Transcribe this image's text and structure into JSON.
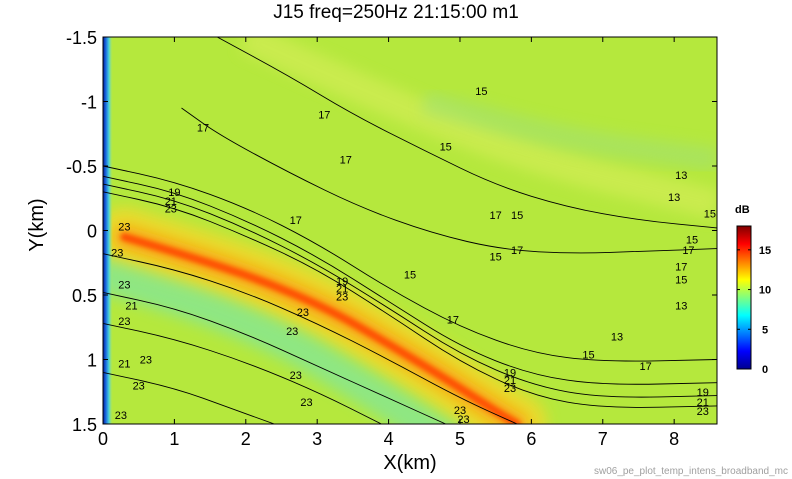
{
  "chart_data": {
    "type": "heatmap",
    "title": "J15 freq=250Hz 21:15:00 m1",
    "xlabel": "X(km)",
    "ylabel": "Y(km)",
    "xlim": [
      0,
      8.6
    ],
    "ylim": [
      -1.5,
      1.5
    ],
    "y_reversed": true,
    "x_ticks": [
      "0",
      "1",
      "2",
      "3",
      "4",
      "5",
      "6",
      "7",
      "8"
    ],
    "y_ticks": [
      "-1.5",
      "-1",
      "-0.5",
      "0",
      "0.5",
      "1",
      "1.5"
    ],
    "colorbar": {
      "label": "dB",
      "range": [
        0,
        18
      ],
      "ticks": [
        "0",
        "5",
        "10",
        "15"
      ],
      "colormap": "jet"
    },
    "background_level_db": 11,
    "high_intensity_band": {
      "level_db": 16.5,
      "path_x": [
        0.3,
        1.2,
        2.2,
        3.2,
        4.0,
        4.8,
        5.5,
        5.8
      ],
      "path_y": [
        0.05,
        0.2,
        0.38,
        0.62,
        0.88,
        1.15,
        1.4,
        1.5
      ]
    },
    "contour_lines": [
      {
        "level": "17",
        "x": [
          1.6,
          2.6,
          3.5,
          4.5,
          5.5,
          6.5,
          7.5,
          8.6
        ],
        "y": [
          -1.5,
          -1.2,
          -0.9,
          -0.62,
          -0.35,
          -0.18,
          -0.08,
          -0.02
        ]
      },
      {
        "level": "17",
        "x": [
          1.1,
          1.6,
          2.6,
          3.6,
          4.6,
          5.6,
          6.6,
          7.6,
          8.6
        ],
        "y": [
          -0.95,
          -0.75,
          -0.45,
          -0.18,
          0.02,
          0.15,
          0.18,
          0.16,
          0.14
        ]
      },
      {
        "level": "17",
        "x": [
          0.0,
          1.0,
          2.0,
          3.0,
          4.0,
          5.0,
          6.0,
          7.0,
          8.6
        ],
        "y": [
          -0.5,
          -0.38,
          -0.18,
          0.1,
          0.45,
          0.75,
          0.95,
          1.02,
          1.0
        ]
      },
      {
        "level": "19",
        "x": [
          0.0,
          1.0,
          2.0,
          3.0,
          4.0,
          5.0,
          6.0,
          7.0,
          8.6
        ],
        "y": [
          -0.42,
          -0.3,
          -0.08,
          0.2,
          0.55,
          0.9,
          1.12,
          1.2,
          1.18
        ]
      },
      {
        "level": "21",
        "x": [
          0.0,
          1.0,
          2.0,
          3.0,
          4.0,
          5.0,
          6.0,
          7.0,
          8.6
        ],
        "y": [
          -0.36,
          -0.24,
          -0.02,
          0.26,
          0.6,
          0.96,
          1.2,
          1.3,
          1.28
        ]
      },
      {
        "level": "23",
        "x": [
          0.0,
          1.0,
          2.0,
          3.0,
          4.0,
          5.0,
          6.0,
          7.0,
          8.6
        ],
        "y": [
          -0.3,
          -0.18,
          0.04,
          0.3,
          0.65,
          1.02,
          1.28,
          1.38,
          1.36
        ]
      },
      {
        "level": "23",
        "x": [
          0.0,
          1.0,
          2.0,
          3.0,
          4.0,
          5.0,
          5.8
        ],
        "y": [
          0.18,
          0.3,
          0.48,
          0.72,
          1.0,
          1.3,
          1.5
        ]
      },
      {
        "level": "21",
        "x": [
          0.0,
          1.0,
          2.0,
          3.0,
          4.0,
          4.8
        ],
        "y": [
          0.48,
          0.6,
          0.8,
          1.05,
          1.3,
          1.5
        ]
      },
      {
        "level": "23",
        "x": [
          0.0,
          1.0,
          2.0,
          3.0,
          3.9
        ],
        "y": [
          0.72,
          0.84,
          1.02,
          1.25,
          1.5
        ]
      },
      {
        "level": "23",
        "x": [
          0.0,
          1.0,
          1.8,
          2.4
        ],
        "y": [
          1.1,
          1.22,
          1.38,
          1.5
        ]
      }
    ],
    "contour_labels": [
      {
        "text": "15",
        "x": 5.3,
        "y": -1.08
      },
      {
        "text": "17",
        "x": 1.4,
        "y": -0.8
      },
      {
        "text": "17",
        "x": 3.1,
        "y": -0.9
      },
      {
        "text": "17",
        "x": 3.4,
        "y": -0.55
      },
      {
        "text": "15",
        "x": 4.8,
        "y": -0.65
      },
      {
        "text": "17",
        "x": 2.7,
        "y": -0.08
      },
      {
        "text": "19",
        "x": 1.0,
        "y": -0.3
      },
      {
        "text": "21",
        "x": 0.95,
        "y": -0.23
      },
      {
        "text": "23",
        "x": 0.95,
        "y": -0.17
      },
      {
        "text": "23",
        "x": 0.3,
        "y": -0.03
      },
      {
        "text": "23",
        "x": 0.2,
        "y": 0.17
      },
      {
        "text": "17",
        "x": 5.5,
        "y": -0.12
      },
      {
        "text": "15",
        "x": 5.8,
        "y": -0.12
      },
      {
        "text": "17",
        "x": 5.8,
        "y": 0.15
      },
      {
        "text": "15",
        "x": 5.5,
        "y": 0.2
      },
      {
        "text": "15",
        "x": 4.3,
        "y": 0.34
      },
      {
        "text": "19",
        "x": 3.35,
        "y": 0.39
      },
      {
        "text": "21",
        "x": 3.35,
        "y": 0.45
      },
      {
        "text": "23",
        "x": 3.35,
        "y": 0.51
      },
      {
        "text": "17",
        "x": 4.9,
        "y": 0.69
      },
      {
        "text": "23",
        "x": 2.8,
        "y": 0.63
      },
      {
        "text": "23",
        "x": 2.65,
        "y": 0.78
      },
      {
        "text": "23",
        "x": 0.3,
        "y": 0.42
      },
      {
        "text": "21",
        "x": 0.4,
        "y": 0.58
      },
      {
        "text": "23",
        "x": 0.3,
        "y": 0.7
      },
      {
        "text": "21",
        "x": 0.3,
        "y": 1.03
      },
      {
        "text": "23",
        "x": 0.6,
        "y": 1.0
      },
      {
        "text": "23",
        "x": 0.5,
        "y": 1.2
      },
      {
        "text": "23",
        "x": 2.7,
        "y": 1.12
      },
      {
        "text": "23",
        "x": 2.85,
        "y": 1.33
      },
      {
        "text": "23",
        "x": 0.25,
        "y": 1.43
      },
      {
        "text": "23",
        "x": 5.0,
        "y": 1.39
      },
      {
        "text": "23",
        "x": 5.05,
        "y": 1.46
      },
      {
        "text": "19",
        "x": 5.7,
        "y": 1.1
      },
      {
        "text": "21",
        "x": 5.7,
        "y": 1.16
      },
      {
        "text": "23",
        "x": 5.7,
        "y": 1.22
      },
      {
        "text": "15",
        "x": 6.8,
        "y": 0.96
      },
      {
        "text": "17",
        "x": 7.6,
        "y": 1.05
      },
      {
        "text": "13",
        "x": 7.2,
        "y": 0.82
      },
      {
        "text": "13",
        "x": 8.1,
        "y": 0.58
      },
      {
        "text": "15",
        "x": 8.1,
        "y": 0.38
      },
      {
        "text": "17",
        "x": 8.1,
        "y": 0.28
      },
      {
        "text": "17",
        "x": 8.2,
        "y": 0.15
      },
      {
        "text": "15",
        "x": 8.25,
        "y": 0.07
      },
      {
        "text": "13",
        "x": 8.1,
        "y": -0.43
      },
      {
        "text": "13",
        "x": 8.0,
        "y": -0.26
      },
      {
        "text": "19",
        "x": 8.4,
        "y": 1.25
      },
      {
        "text": "21",
        "x": 8.4,
        "y": 1.33
      },
      {
        "text": "23",
        "x": 8.4,
        "y": 1.4
      },
      {
        "text": "15",
        "x": 8.5,
        "y": -0.13
      }
    ]
  },
  "footer": "sw06_pe_plot_temp_intens_broadband_mc"
}
